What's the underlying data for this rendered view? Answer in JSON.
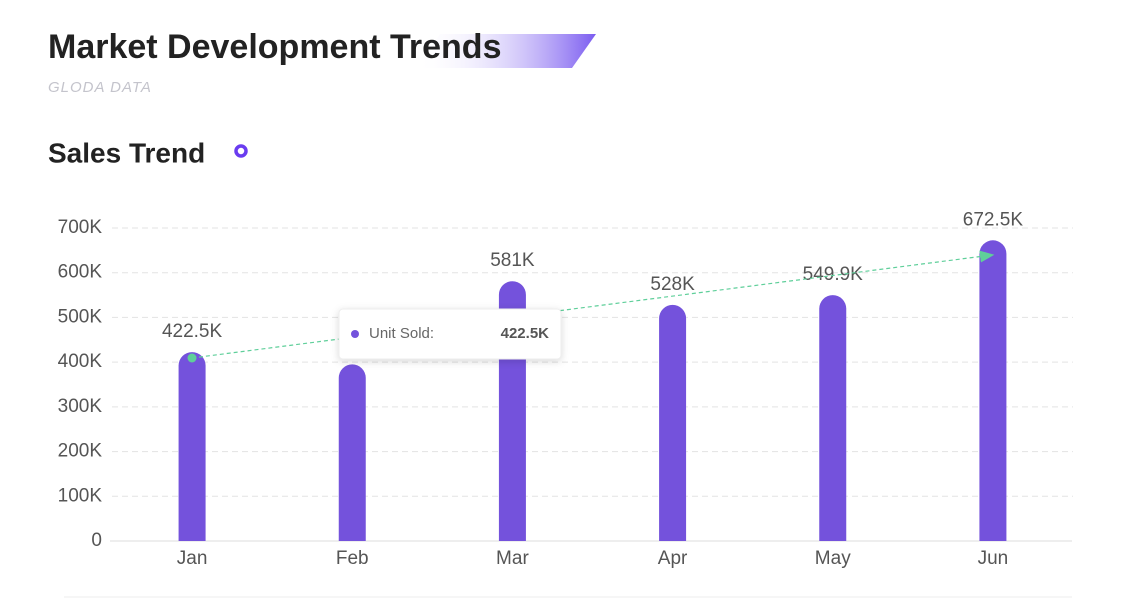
{
  "header": {
    "title": "Market Development Trends",
    "subtitle": "GLODA DATA"
  },
  "chart_data": {
    "type": "bar",
    "title": "Sales Trend",
    "categories": [
      "Jan",
      "Feb",
      "Mar",
      "Apr",
      "May",
      "Jun"
    ],
    "series": [
      {
        "color": "#7452dc",
        "values": [
          422500,
          395000,
          581000,
          528000,
          549900,
          672500
        ],
        "value_labels": [
          "422.5K",
          null,
          "581K",
          "528K",
          "549.9K",
          "672.5K"
        ]
      }
    ],
    "ylim": [
      0,
      700000
    ],
    "yticks": [
      0,
      {
        "value": 100000,
        "label": "100K"
      },
      {
        "value": 200000,
        "label": "200K"
      },
      {
        "value": 300000,
        "label": "300K"
      },
      {
        "value": 400000,
        "label": "400K"
      },
      {
        "value": 500000,
        "label": "500K"
      },
      {
        "value": 600000,
        "label": "600K"
      },
      {
        "value": 700000,
        "label": "700K"
      }
    ],
    "grid": true,
    "tooltip": {
      "label": "Unit Sold:"
    }
  }
}
